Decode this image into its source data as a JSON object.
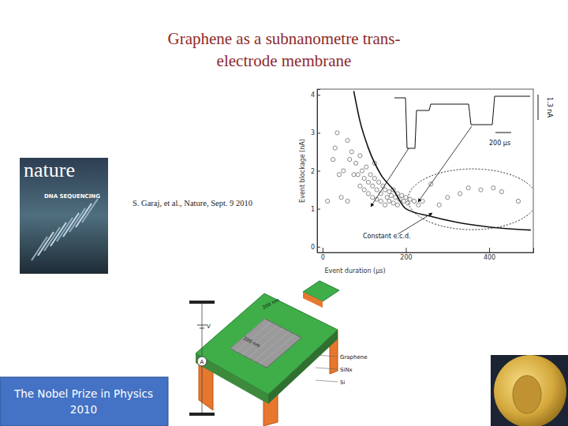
{
  "title": [
    "Graphene as a subnanometre trans-",
    "electrode membrane"
  ],
  "citation": "S. Garaj, et al., Nature, Sept. 9 2010",
  "cover": {
    "masthead": "nature",
    "headline": "DNA SEQUENCING"
  },
  "nobel_box": [
    "The Nobel Prize in Physics",
    "2010"
  ],
  "device": {
    "scale_labels": [
      "200 nm",
      "200 nm"
    ],
    "layers": [
      "Graphene",
      "SiNx",
      "Si"
    ],
    "circuit_labels": [
      "V",
      "A"
    ]
  },
  "chart_data": {
    "type": "scatter",
    "x_label": "Event duration (μs)",
    "y_label": "Event blockage (nA)",
    "x": [
      30,
      35,
      45,
      60,
      65,
      70,
      80,
      85,
      90,
      95,
      100,
      105,
      110,
      115,
      120,
      125,
      130,
      135,
      140,
      145,
      150,
      155,
      160,
      165,
      170,
      175,
      180,
      185,
      190,
      195,
      200,
      205,
      210,
      220,
      230,
      100,
      120,
      140,
      160,
      180,
      90,
      110,
      130,
      150,
      170,
      75,
      125,
      60,
      50,
      40,
      240,
      280,
      330,
      350,
      380,
      410,
      430,
      300,
      260,
      470,
      25,
      12
    ],
    "y": [
      2.6,
      3.0,
      1.3,
      2.8,
      2.3,
      2.5,
      2.2,
      1.9,
      2.4,
      2.0,
      1.8,
      2.1,
      1.7,
      1.9,
      1.6,
      1.8,
      1.5,
      1.7,
      1.4,
      1.6,
      1.5,
      1.3,
      1.45,
      1.35,
      1.5,
      1.3,
      1.4,
      1.25,
      1.35,
      1.2,
      1.3,
      1.15,
      1.25,
      1.2,
      1.1,
      1.5,
      1.3,
      1.2,
      1.2,
      1.1,
      1.6,
      1.4,
      1.25,
      1.1,
      1.15,
      1.9,
      2.2,
      1.2,
      2.0,
      1.9,
      1.2,
      1.1,
      1.4,
      1.55,
      1.5,
      1.55,
      1.45,
      1.3,
      1.65,
      1.2,
      2.3,
      1.2
    ],
    "xlim": [
      -13,
      506
    ],
    "ylim": [
      -0.15,
      4.15
    ],
    "xticks": [
      0,
      200,
      400
    ],
    "yticks": [
      0,
      1,
      2,
      3,
      4
    ],
    "marker": "circle",
    "color": "#8a8a8a",
    "fit_curve": {
      "label": "Constant e.c.d.",
      "x": [
        75,
        90,
        110,
        140,
        170,
        200,
        260,
        320,
        400,
        500
      ],
      "y": [
        4.1,
        3.3,
        2.6,
        1.9,
        1.5,
        1.0,
        0.8,
        0.65,
        0.52,
        0.44
      ]
    },
    "ellipse": {
      "cx": 360,
      "cy": 1.25,
      "rx": 155,
      "ry": 0.8
    },
    "inset_labels": {
      "time_scale": "200 μs",
      "current_scale": "1.3 nA"
    }
  }
}
